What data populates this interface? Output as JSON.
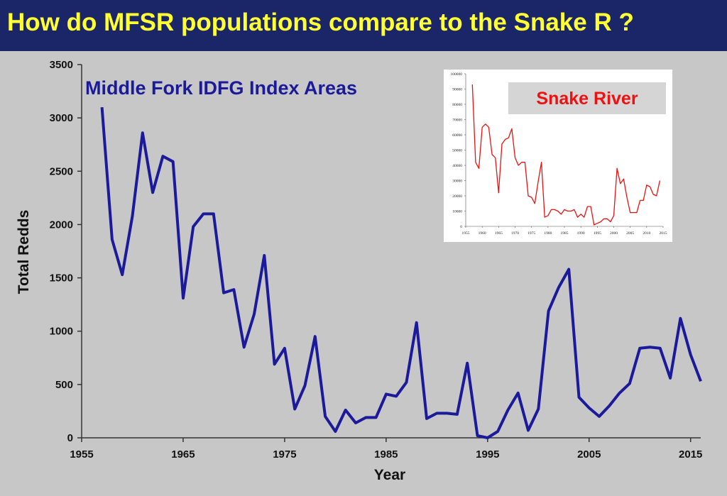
{
  "slide": {
    "title": "How do MFSR populations compare to the Snake R ?",
    "colors": {
      "title_bar": "#1a2668",
      "title_text": "#ffff33",
      "background": "#c7c7c7"
    }
  },
  "chart_data": [
    {
      "type": "line",
      "title": "Middle Fork IDFG Index Areas",
      "xlabel": "Year",
      "ylabel": "Total Redds",
      "xlim": [
        1955,
        2016
      ],
      "ylim": [
        0,
        3500
      ],
      "x_ticks": [
        "1955",
        "1965",
        "1975",
        "1985",
        "1995",
        "2005",
        "2015"
      ],
      "y_ticks": [
        "0",
        "500",
        "1000",
        "1500",
        "2000",
        "2500",
        "3000",
        "3500"
      ],
      "grid": false,
      "color": "#1a1a9a",
      "series": [
        {
          "x": [
            1957,
            1958,
            1959,
            1960,
            1961,
            1962,
            1963,
            1964,
            1965,
            1966,
            1967,
            1968,
            1969,
            1970,
            1971,
            1972,
            1973,
            1974,
            1975,
            1976,
            1977,
            1978,
            1979,
            1980,
            1981,
            1982,
            1983,
            1984,
            1985,
            1986,
            1987,
            1988,
            1989,
            1990,
            1991,
            1992,
            1993,
            1994,
            1995,
            1996,
            1997,
            1998,
            1999,
            2000,
            2001,
            2002,
            2003,
            2004,
            2005,
            2006,
            2007,
            2008,
            2009,
            2010,
            2011,
            2012,
            2013,
            2014,
            2015,
            2016
          ],
          "values": [
            3100,
            1860,
            1530,
            2080,
            2860,
            2300,
            2640,
            2590,
            1310,
            1980,
            2100,
            2100,
            1360,
            1390,
            850,
            1160,
            1710,
            690,
            840,
            270,
            490,
            950,
            200,
            60,
            260,
            140,
            190,
            190,
            410,
            390,
            520,
            1080,
            180,
            230,
            230,
            220,
            700,
            20,
            0,
            60,
            260,
            420,
            70,
            270,
            1190,
            1410,
            1580,
            380,
            280,
            200,
            300,
            420,
            510,
            840,
            850,
            840,
            560,
            1120,
            780,
            530
          ]
        }
      ]
    },
    {
      "type": "line",
      "title": "Snake River",
      "xlim": [
        1955,
        2015
      ],
      "ylim": [
        0,
        100000
      ],
      "x_ticks": [
        "1955",
        "1960",
        "1965",
        "1970",
        "1975",
        "1980",
        "1985",
        "1990",
        "1995",
        "2000",
        "2005",
        "2010",
        "2015"
      ],
      "y_ticks": [
        "0",
        "10000",
        "20000",
        "30000",
        "40000",
        "50000",
        "60000",
        "70000",
        "80000",
        "90000",
        "100000"
      ],
      "color": "#ee1111",
      "series": [
        {
          "x": [
            1957,
            1958,
            1959,
            1960,
            1961,
            1962,
            1963,
            1964,
            1965,
            1966,
            1967,
            1968,
            1969,
            1970,
            1971,
            1972,
            1973,
            1974,
            1975,
            1976,
            1977,
            1978,
            1979,
            1980,
            1981,
            1982,
            1983,
            1984,
            1985,
            1986,
            1987,
            1988,
            1989,
            1990,
            1991,
            1992,
            1993,
            1994,
            1995,
            1996,
            1997,
            1998,
            1999,
            2000,
            2001,
            2002,
            2003,
            2004,
            2005,
            2006,
            2007,
            2008,
            2009,
            2010,
            2011,
            2012,
            2013,
            2014
          ],
          "values": [
            93000,
            42000,
            38000,
            65000,
            67000,
            65000,
            47000,
            45000,
            22000,
            54000,
            57000,
            58000,
            64000,
            45000,
            40000,
            42000,
            42000,
            20000,
            19000,
            15000,
            29000,
            42000,
            6000,
            7000,
            11000,
            11000,
            10000,
            8000,
            11000,
            10000,
            10000,
            11000,
            6000,
            8000,
            6000,
            13000,
            13000,
            1000,
            2000,
            3000,
            5000,
            5000,
            3000,
            7000,
            38000,
            28000,
            31000,
            19000,
            9000,
            9000,
            9000,
            17000,
            17000,
            27000,
            26000,
            21000,
            20000,
            30000
          ]
        }
      ]
    }
  ]
}
